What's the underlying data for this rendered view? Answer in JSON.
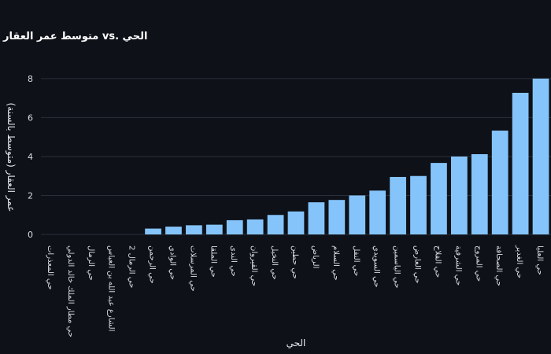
{
  "colors": {
    "background": "#0e1118",
    "bar": "#85c4fb",
    "grid": "#2a2f3a",
    "text": "#d9dde6"
  },
  "chart_data": {
    "type": "bar",
    "title": "متوسط عمر العقار vs. الحي",
    "xlabel": "الحي",
    "ylabel": "عمر العقار (متوسط بالسنة)",
    "ylim": [
      0,
      8.4
    ],
    "yticks": [
      0,
      2,
      4,
      6,
      8
    ],
    "grid": true,
    "categories": [
      "حي المعذرات",
      "حي مطار الملك خالد الدولي",
      "حي الرمال",
      "الشارع عبد الله بن العباس",
      "حي الرمال 2",
      "حي الرحمن",
      "حي الوادي",
      "حي المرسلات",
      "حي الملقا",
      "حي الندى",
      "حي القيروان",
      "حي النخيل",
      "حي حطين",
      "الرياض",
      "حي السلام",
      "حي النفل",
      "حي السويدي",
      "حي الياسمين",
      "حي العارض",
      "حي الفلاح",
      "حي الشرفية",
      "حي المروج",
      "حي الصحافة",
      "حي الغدير",
      "حي العليا"
    ],
    "values": [
      0,
      0,
      0,
      0,
      0,
      0.3,
      0.4,
      0.47,
      0.5,
      0.73,
      0.77,
      1.0,
      1.18,
      1.65,
      1.77,
      2.0,
      2.25,
      2.95,
      3.0,
      3.67,
      4.0,
      4.12,
      5.33,
      7.27,
      8.0
    ]
  }
}
